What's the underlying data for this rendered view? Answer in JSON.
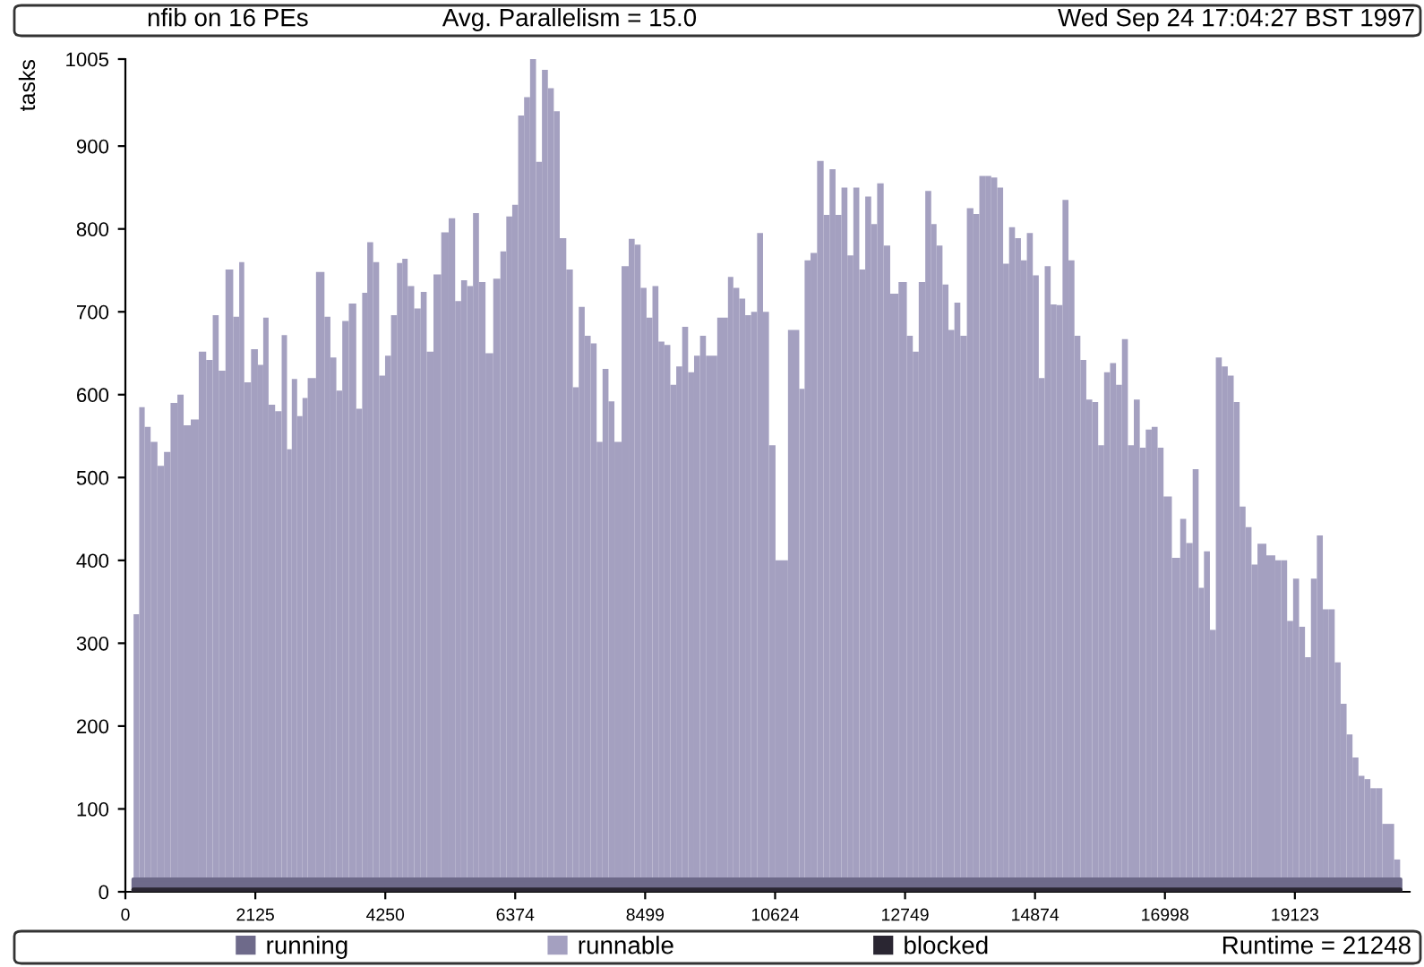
{
  "chart_data": {
    "type": "bar",
    "title": "nfib on 16 PEs",
    "ylabel": "tasks",
    "annotations": [
      "Avg. Parallelism = 15.0",
      "Wed Sep 24 17:04:27 BST 1997",
      "Runtime = 21248"
    ],
    "xlim": [
      0,
      21000
    ],
    "xticks": [
      0,
      2125,
      4250,
      6374,
      8499,
      10624,
      12749,
      14874,
      16998,
      19123
    ],
    "ylim": [
      0,
      1005
    ],
    "yticks": [
      0,
      100,
      200,
      300,
      400,
      500,
      600,
      700,
      800,
      900,
      1005
    ],
    "grid": false,
    "legend": "bottom",
    "series": [
      {
        "name": "running",
        "color": "#6e6a8a",
        "type": "area",
        "x": [
          130,
          20850
        ],
        "values": [
          15,
          15
        ]
      },
      {
        "name": "runnable",
        "color": "#a4a0c0",
        "x": [
          180,
          272,
          360,
          466,
          583,
          680,
          797,
          904,
          1001,
          1137,
          1263,
          1380,
          1477,
          1574,
          1700,
          1827,
          1895,
          1992,
          2118,
          2215,
          2293,
          2390,
          2507,
          2604,
          2682,
          2760,
          2857,
          2935,
          3027,
          3207,
          3304,
          3401,
          3498,
          3595,
          3712,
          3838,
          3906,
          4003,
          4100,
          4198,
          4295,
          4392,
          4489,
          4567,
          4664,
          4781,
          4878,
          4975,
          5101,
          5228,
          5344,
          5441,
          5539,
          5636,
          5733,
          5830,
          5947,
          6083,
          6180,
          6277,
          6374,
          6471,
          6568,
          6666,
          6763,
          6860,
          6957,
          7054,
          7151,
          7268,
          7365,
          7462,
          7559,
          7657,
          7754,
          7851,
          7948,
          8045,
          8182,
          8279,
          8376,
          8473,
          8570,
          8667,
          8765,
          8862,
          8959,
          9056,
          9153,
          9250,
          9348,
          9445,
          9541,
          9814,
          9892,
          9989,
          10086,
          10184,
          10281,
          10378,
          10475,
          10572,
          10689,
          10980,
          11058,
          11155,
          11252,
          11369,
          11466,
          11563,
          11661,
          11758,
          11855,
          11952,
          12049,
          12146,
          12244,
          12341,
          12457,
          12555,
          12729,
          12827,
          12924,
          13021,
          13138,
          13215,
          13312,
          13410,
          13507,
          13604,
          13701,
          13818,
          13915,
          14012,
          14109,
          14207,
          14304,
          14401,
          14498,
          14595,
          14692,
          14789,
          14887,
          14984,
          15081,
          15178,
          15275,
          15372,
          15470,
          15567,
          15664,
          15761,
          15858,
          15955,
          16052,
          16150,
          16247,
          16344,
          16441,
          16538,
          16636,
          16733,
          16830,
          16927,
          17024,
          17199,
          17296,
          17394,
          17510,
          17588,
          17685,
          17782,
          17879,
          17977,
          18074,
          18171,
          18268,
          18365,
          18463,
          18560,
          18754,
          18851,
          18948,
          19045,
          19143,
          19240,
          19337,
          19434,
          19531,
          19629,
          19726,
          19823,
          19920,
          20017,
          20114,
          20211,
          20309,
          20406,
          20503,
          20600,
          20697,
          20795
        ],
        "values": [
          335,
          585,
          561,
          543,
          514,
          531,
          590,
          600,
          563,
          570,
          652,
          642,
          696,
          629,
          751,
          694,
          760,
          615,
          655,
          636,
          693,
          588,
          580,
          672,
          534,
          619,
          574,
          596,
          620,
          748,
          694,
          645,
          605,
          689,
          710,
          583,
          723,
          784,
          760,
          623,
          647,
          696,
          759,
          764,
          731,
          704,
          724,
          652,
          745,
          796,
          813,
          713,
          738,
          731,
          819,
          736,
          650,
          740,
          773,
          815,
          829,
          937,
          959,
          1005,
          881,
          992,
          970,
          942,
          789,
          751,
          609,
          706,
          671,
          662,
          543,
          631,
          592,
          543,
          755,
          788,
          781,
          729,
          693,
          731,
          664,
          660,
          612,
          634,
          682,
          627,
          647,
          671,
          647,
          693,
          742,
          729,
          716,
          696,
          700,
          795,
          700,
          539,
          400,
          678,
          607,
          762,
          771,
          882,
          817,
          872,
          817,
          850,
          768,
          850,
          751,
          839,
          806,
          855,
          780,
          722,
          736,
          671,
          652,
          736,
          846,
          806,
          780,
          733,
          678,
          711,
          671,
          825,
          818,
          864,
          864,
          862,
          850,
          758,
          802,
          789,
          762,
          795,
          744,
          620,
          755,
          709,
          708,
          835,
          762,
          671,
          642,
          594,
          591,
          539,
          627,
          638,
          612,
          667,
          539,
          594,
          536,
          558,
          561,
          536,
          477,
          403,
          450,
          421,
          510,
          367,
          411,
          316,
          645,
          634,
          623,
          591,
          465,
          440,
          395,
          420,
          406,
          400,
          400,
          327,
          378,
          320,
          283,
          378,
          430,
          341,
          341,
          277,
          227,
          190,
          162,
          140,
          136,
          125,
          125,
          82,
          82,
          39
        ]
      },
      {
        "name": "blocked",
        "color": "#2a2632",
        "type": "area",
        "x": [
          130,
          20850
        ],
        "values": [
          3,
          3
        ]
      }
    ]
  }
}
